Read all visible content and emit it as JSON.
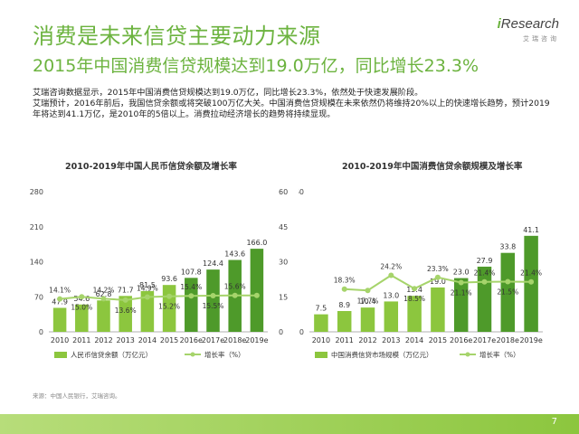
{
  "header": {
    "title": "消费是未来信贷主要动力来源",
    "subtitle": "2015年中国消费信贷规模达到19.0万亿，同比增长23.3%"
  },
  "logo": {
    "brand_prefix": "i",
    "brand_rest": "Research",
    "sub": "艾瑞咨询"
  },
  "paragraph": {
    "line1": "艾瑞咨询数据显示，2015年中国消费信贷规模达到19.0万亿，同比增长23.3%，依然处于快速发展阶段。",
    "line2": "艾瑞预计，2016年前后，我国信贷余额或将突破100万亿大关。中国消费信贷规模在未来依然仍将维持20%以上的快速增长趋势，预计2019年将达到41.1万亿，是2010年的5倍以上。消费拉动经济增长的趋势将持续显现。"
  },
  "source": "来源：中国人民银行，艾瑞咨询。",
  "page_number": "7",
  "colors": {
    "accent": "#6cb33f",
    "bar_light": "#8cc63e",
    "bar_dark": "#4e9a2a",
    "line": "#a6d46b"
  },
  "chart_data": [
    {
      "type": "bar",
      "title": "2010-2019年中国人民币信贷余额及增长率",
      "categories": [
        "2010",
        "2011",
        "2012",
        "2013",
        "2014",
        "2015",
        "2016e",
        "2017e",
        "2018e",
        "2019e"
      ],
      "series": [
        {
          "name": "人民币信贷余额（万亿元）",
          "kind": "bar",
          "axis": "left",
          "values": [
            47.9,
            54.6,
            62.8,
            71.7,
            81.5,
            93.6,
            107.8,
            124.4,
            143.6,
            166.0
          ],
          "labels": [
            "47.9",
            "54.6",
            "62.8",
            "71.7",
            "81.5",
            "93.6",
            "107.8",
            "124.4",
            "143.6",
            "166.0"
          ]
        },
        {
          "name": "增长率（%）",
          "kind": "line",
          "axis": "right",
          "values": [
            14.1,
            15.0,
            14.2,
            13.6,
            14.9,
            15.2,
            15.4,
            15.5,
            15.6,
            15.6
          ],
          "labels": [
            "14.1%",
            "15.0%",
            "14.2%",
            "13.6%",
            "14.9%",
            "15.2%",
            "15.4%",
            "15.5%",
            "15.6%",
            ""
          ]
        }
      ],
      "y_left": {
        "min": 0,
        "max": 280,
        "ticks": [
          "0",
          "70",
          "140",
          "210",
          "280"
        ]
      },
      "y_right": {
        "min": 0,
        "max": 60,
        "ticks": [
          "0",
          "15",
          "30",
          "45",
          "60"
        ]
      }
    },
    {
      "type": "bar",
      "title": "2010-2019年中国消费信贷余额规模及增长率",
      "categories": [
        "2010",
        "2011",
        "2012",
        "2013",
        "2014",
        "2015",
        "2016e",
        "2017e",
        "2018e",
        "2019e"
      ],
      "series": [
        {
          "name": "中国消费信贷市场规模（万亿元）",
          "kind": "bar",
          "axis": "left",
          "values": [
            7.5,
            8.9,
            10.4,
            13.0,
            15.4,
            19.0,
            23.0,
            27.9,
            33.8,
            41.1
          ],
          "labels": [
            "7.5",
            "8.9",
            "10.4",
            "13.0",
            "15.4",
            "19.0",
            "23.0",
            "27.9",
            "33.8",
            "41.1"
          ]
        },
        {
          "name": "增长率（%）",
          "kind": "line",
          "axis": "right",
          "values": [
            null,
            18.3,
            17.7,
            24.2,
            18.5,
            23.3,
            21.1,
            21.4,
            21.5,
            21.4
          ],
          "labels": [
            "",
            "18.3%",
            "17.7%",
            "24.2%",
            "18.5%",
            "23.3%",
            "21.1%",
            "21.4%",
            "21.5%",
            "21.4%"
          ]
        }
      ],
      "y_left": {
        "min": 0,
        "max": 60,
        "ticks": [
          "0",
          "",
          "",
          "",
          "60"
        ]
      },
      "y_right": {
        "min": 0,
        "max": 60,
        "ticks": []
      }
    }
  ]
}
